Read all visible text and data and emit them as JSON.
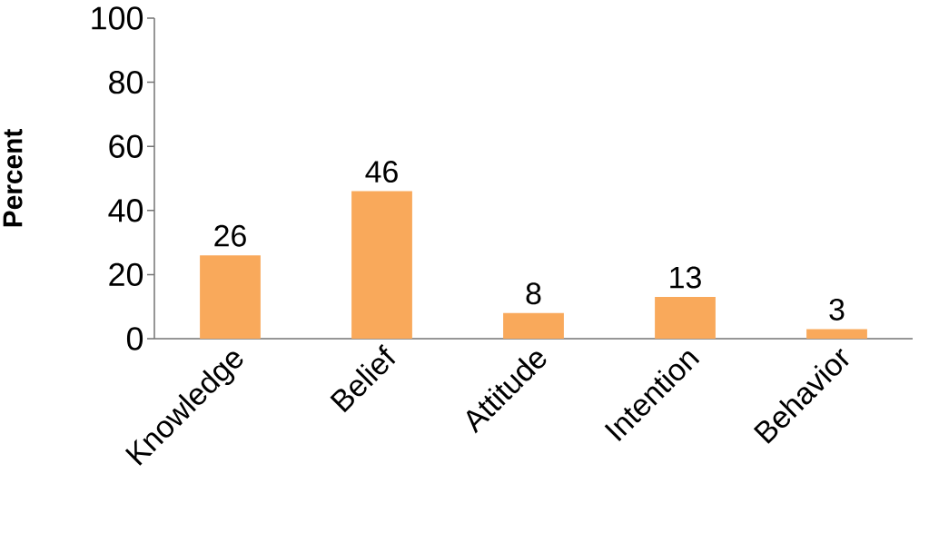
{
  "chart_data": {
    "type": "bar",
    "ylabel": "Percent",
    "categories": [
      "Knowledge",
      "Belief",
      "Attitude",
      "Intention",
      "Behavior"
    ],
    "values": [
      26,
      46,
      8,
      13,
      3
    ],
    "color": "#f9a95b",
    "ylim": [
      0,
      100
    ],
    "yticks": [
      0,
      20,
      40,
      60,
      80,
      100
    ],
    "data_labels": true
  }
}
